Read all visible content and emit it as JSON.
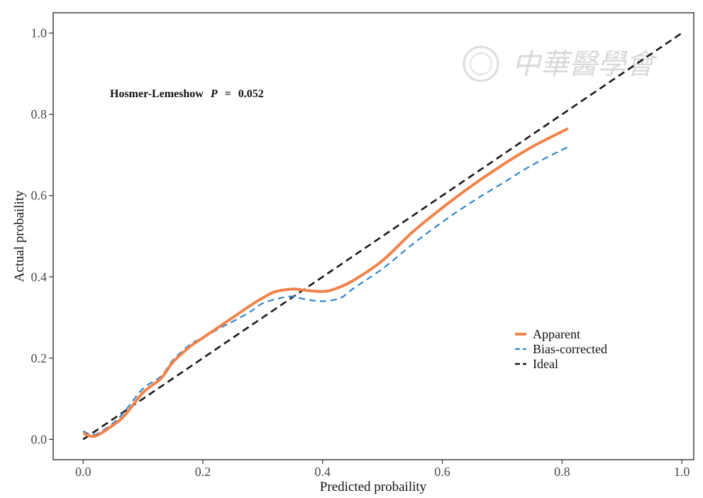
{
  "chart_data": {
    "type": "line",
    "xlabel": "Predicted probaility",
    "ylabel": "Actual probaility",
    "xlim": [
      -0.05,
      1.02
    ],
    "ylim": [
      -0.05,
      1.05
    ],
    "x_ticks": [
      0.0,
      0.2,
      0.4,
      0.6,
      0.8,
      1.0
    ],
    "y_ticks": [
      0.0,
      0.2,
      0.4,
      0.6,
      0.8,
      1.0
    ],
    "x_tick_labels": [
      "0.0",
      "0.2",
      "0.4",
      "0.6",
      "0.8",
      "1.0"
    ],
    "y_tick_labels": [
      "0.0",
      "0.2",
      "0.4",
      "0.6",
      "0.8",
      "1.0"
    ],
    "grid": false,
    "legend_position": "right-middle",
    "annotation": {
      "prefix": "Hosmer-Lemeshow",
      "p_label": "P",
      "equals": "=",
      "value": "0.052"
    },
    "series": [
      {
        "name": "Apparent",
        "color": "#F0834A",
        "style": "solid",
        "x": [
          0.0,
          0.02,
          0.05,
          0.07,
          0.1,
          0.13,
          0.15,
          0.18,
          0.2,
          0.23,
          0.25,
          0.28,
          0.3,
          0.32,
          0.35,
          0.37,
          0.4,
          0.42,
          0.45,
          0.5,
          0.55,
          0.6,
          0.65,
          0.7,
          0.75,
          0.81
        ],
        "values": [
          0.015,
          0.008,
          0.035,
          0.06,
          0.115,
          0.15,
          0.19,
          0.23,
          0.25,
          0.28,
          0.3,
          0.33,
          0.348,
          0.363,
          0.37,
          0.367,
          0.364,
          0.37,
          0.39,
          0.44,
          0.51,
          0.57,
          0.625,
          0.675,
          0.72,
          0.765
        ]
      },
      {
        "name": "Bias-corrected",
        "color": "#2E86D0",
        "style": "dashed",
        "x": [
          0.0,
          0.02,
          0.05,
          0.07,
          0.1,
          0.13,
          0.15,
          0.18,
          0.2,
          0.23,
          0.25,
          0.28,
          0.3,
          0.33,
          0.35,
          0.37,
          0.4,
          0.43,
          0.45,
          0.5,
          0.55,
          0.6,
          0.65,
          0.7,
          0.75,
          0.81
        ],
        "values": [
          0.02,
          0.012,
          0.04,
          0.07,
          0.125,
          0.155,
          0.195,
          0.235,
          0.25,
          0.275,
          0.29,
          0.315,
          0.335,
          0.348,
          0.352,
          0.345,
          0.34,
          0.348,
          0.37,
          0.42,
          0.48,
          0.535,
          0.585,
          0.63,
          0.675,
          0.72
        ]
      },
      {
        "name": "Ideal",
        "color": "#1a1a1a",
        "style": "dashed",
        "x": [
          0.0,
          1.0
        ],
        "values": [
          0.0,
          1.0
        ]
      }
    ]
  },
  "watermark": {
    "text": "中華醫學會",
    "color": "#d9d9d9"
  }
}
